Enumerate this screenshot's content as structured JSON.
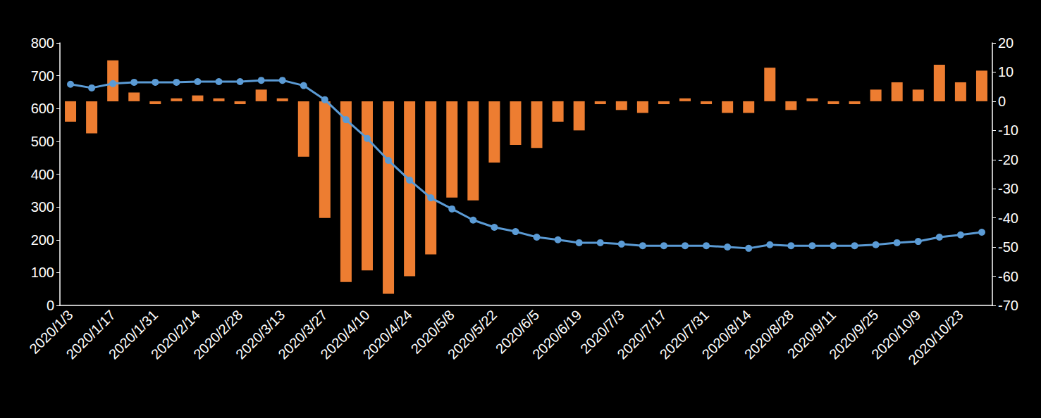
{
  "chart_data": {
    "type": "bar",
    "categories": [
      "2020/1/3",
      null,
      "2020/1/17",
      null,
      "2020/1/31",
      null,
      "2020/2/14",
      null,
      "2020/2/28",
      null,
      "2020/3/13",
      null,
      "2020/3/27",
      null,
      "2020/4/10",
      null,
      "2020/4/24",
      null,
      "2020/5/8",
      null,
      "2020/5/22",
      null,
      "2020/6/5",
      null,
      "2020/6/19",
      null,
      "2020/7/3",
      null,
      "2020/7/17",
      null,
      "2020/7/31",
      null,
      "2020/8/14",
      null,
      "2020/8/28",
      null,
      "2020/9/11",
      null,
      "2020/9/25",
      null,
      "2020/10/9",
      null,
      "2020/10/23",
      null
    ],
    "series": [
      {
        "type": "bar",
        "axis": "y2",
        "color": "#ED7D31",
        "values": [
          -7,
          -11,
          14,
          3,
          -1,
          1,
          2,
          1,
          -1,
          4,
          1,
          -19,
          -40,
          -62,
          -58,
          -66,
          -60,
          -52.5,
          -33,
          -34,
          -21,
          -15,
          -16,
          -7,
          -10,
          -1,
          -3,
          -4,
          -1,
          1,
          -1,
          -4,
          -4,
          11.5,
          -3,
          1,
          -1,
          -1,
          4,
          6.5,
          4,
          12.5,
          6.5,
          10.5
        ]
      },
      {
        "type": "line",
        "color": "#5B9BD5",
        "marker": "circle",
        "line_style": "solid",
        "values": [
          674,
          663,
          676,
          680,
          680,
          680,
          682,
          682,
          682,
          686,
          686,
          670,
          627,
          566,
          509,
          442,
          382,
          328,
          294,
          260,
          238,
          225,
          208,
          200,
          191,
          191,
          187,
          182,
          182,
          182,
          182,
          178,
          174,
          185,
          182,
          182,
          182,
          182,
          185,
          191,
          195,
          208,
          215,
          223
        ]
      }
    ],
    "ylim": [
      0,
      800
    ],
    "yticks": [
      0,
      100,
      200,
      300,
      400,
      500,
      600,
      700,
      800
    ],
    "y2lim": [
      -70,
      20
    ],
    "y2ticks": [
      -70,
      -60,
      -50,
      -40,
      -30,
      -20,
      -10,
      0,
      10,
      20
    ],
    "grid": false
  }
}
